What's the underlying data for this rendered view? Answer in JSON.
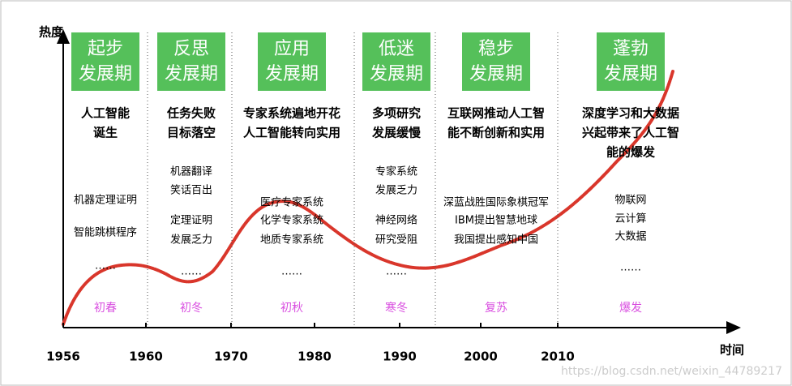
{
  "axes": {
    "y_label": "热度",
    "x_label": "时间",
    "x_ticks": [
      "1956",
      "1960",
      "1970",
      "1980",
      "1990",
      "2000",
      "2010"
    ]
  },
  "phases": [
    {
      "name": [
        "起步",
        "发展期"
      ],
      "headline": [
        "人工智能",
        "诞生"
      ],
      "items": [
        "机器定理证明",
        "智能跳棋程序",
        "……"
      ],
      "season": "初春"
    },
    {
      "name": [
        "反思",
        "发展期"
      ],
      "headline": [
        "任务失败",
        "目标落空"
      ],
      "items": [
        "机器翻译",
        "笑话百出",
        "定理证明",
        "发展乏力",
        "……"
      ],
      "season": "初冬"
    },
    {
      "name": [
        "应用",
        "发展期"
      ],
      "headline": [
        "专家系统遍地开花",
        "人工智能转向实用"
      ],
      "items": [
        "医疗专家系统",
        "化学专家系统",
        "地质专家系统",
        "……"
      ],
      "season": "初秋"
    },
    {
      "name": [
        "低迷",
        "发展期"
      ],
      "headline": [
        "多项研究",
        "发展缓慢"
      ],
      "items": [
        "专家系统",
        "发展乏力",
        "神经网络",
        "研究受阻",
        "……"
      ],
      "season": "寒冬"
    },
    {
      "name": [
        "稳步",
        "发展期"
      ],
      "headline": [
        "互联网推动人工智",
        "能不断创新和实用"
      ],
      "items": [
        "深蓝战胜国际象棋冠军",
        "IBM提出智慧地球",
        "我国提出感知中国"
      ],
      "season": "复苏"
    },
    {
      "name": [
        "蓬勃",
        "发展期"
      ],
      "headline": [
        "深度学习和大数据",
        "兴起带来了人工智",
        "能的爆发"
      ],
      "items": [
        "物联网",
        "云计算",
        "大数据",
        "……"
      ],
      "season": "爆发"
    }
  ],
  "watermark": "https://blog.csdn.net/weixin_44789217"
}
